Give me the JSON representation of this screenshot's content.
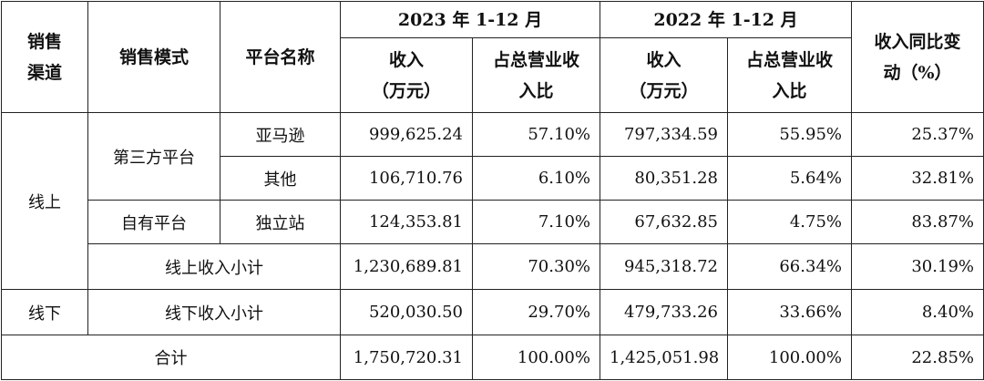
{
  "table": {
    "header": {
      "channel": [
        "销售",
        "渠道"
      ],
      "mode": "销售模式",
      "platform": "平台名称",
      "period_2023": "2023 年 1-12 月",
      "period_2022": "2022 年 1-12 月",
      "revenue_2023": [
        "收入",
        "（万元）"
      ],
      "share_2023": [
        "占总营业收",
        "入比"
      ],
      "revenue_2022": [
        "收入",
        "（万元）"
      ],
      "share_2022": [
        "占总营业收",
        "入比"
      ],
      "yoy": [
        "收入同比变",
        "动（%）"
      ]
    },
    "rows": [
      {
        "channel": "线上",
        "mode": "第三方平台",
        "platform": "亚马逊",
        "revenue_2023": "999,625.24",
        "share_2023": "57.10%",
        "revenue_2022": "797,334.59",
        "share_2022": "55.95%",
        "yoy": "25.37%"
      },
      {
        "platform": "其他",
        "revenue_2023": "106,710.76",
        "share_2023": "6.10%",
        "revenue_2022": "80,351.28",
        "share_2022": "5.64%",
        "yoy": "32.81%"
      },
      {
        "mode": "自有平台",
        "platform": "独立站",
        "revenue_2023": "124,353.81",
        "share_2023": "7.10%",
        "revenue_2022": "67,632.85",
        "share_2022": "4.75%",
        "yoy": "83.87%"
      },
      {
        "label": "线上收入小计",
        "revenue_2023": "1,230,689.81",
        "share_2023": "70.30%",
        "revenue_2022": "945,318.72",
        "share_2022": "66.34%",
        "yoy": "30.19%"
      },
      {
        "channel": "线下",
        "label": "线下收入小计",
        "revenue_2023": "520,030.50",
        "share_2023": "29.70%",
        "revenue_2022": "479,733.26",
        "share_2022": "33.66%",
        "yoy": "8.40%"
      },
      {
        "label": "合计",
        "revenue_2023": "1,750,720.31",
        "share_2023": "100.00%",
        "revenue_2022": "1,425,051.98",
        "share_2022": "100.00%",
        "yoy": "22.85%"
      }
    ]
  }
}
